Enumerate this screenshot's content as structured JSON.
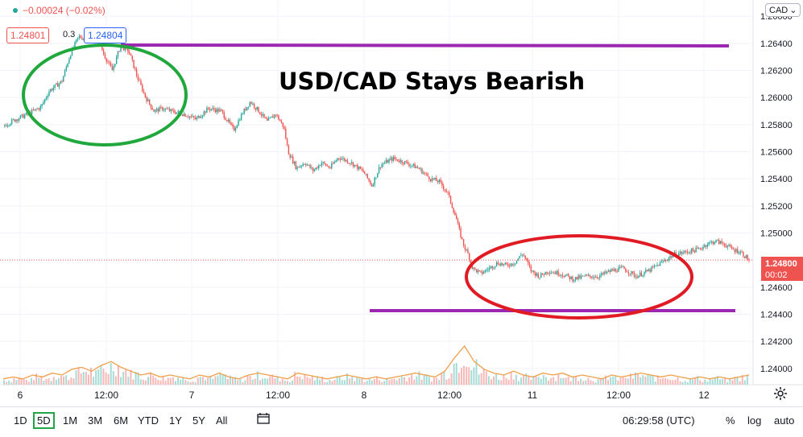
{
  "symbol_legend": {
    "change": "−0.00024 (−0.02%)"
  },
  "quote": {
    "bid": "1.24801",
    "spread": "0.3",
    "ask": "1.24804"
  },
  "currency_button": "CAD",
  "annotation_title": "USD/CAD Stays Bearish",
  "last_price": {
    "price": "1.24800",
    "countdown": "00:02"
  },
  "price_axis": [
    "1.26600",
    "1.26400",
    "1.26200",
    "1.26000",
    "1.25800",
    "1.25600",
    "1.25400",
    "1.25200",
    "1.25000",
    "1.24600",
    "1.24400",
    "1.24200",
    "1.24000"
  ],
  "time_axis": [
    "6",
    "12:00",
    "7",
    "12:00",
    "8",
    "12:00",
    "11",
    "12:00",
    "12"
  ],
  "timeframes": [
    "1D",
    "5D",
    "1M",
    "3M",
    "6M",
    "YTD",
    "1Y",
    "5Y",
    "All"
  ],
  "selected_timeframe": "5D",
  "clock": "06:29:58 (UTC)",
  "toolbar_right": {
    "percent": "%",
    "log": "log",
    "auto": "auto"
  },
  "colors": {
    "up": "#26a69a",
    "down": "#ef5350",
    "ma": "#f0a04b",
    "resistance_line": "#9c27b0",
    "top_circle": "#21a83c",
    "bottom_circle": "#e01b24"
  },
  "chart_data": {
    "type": "line",
    "ylim": [
      1.2388,
      1.2672
    ],
    "price_path": [
      [
        0,
        1.2579
      ],
      [
        3,
        1.2584
      ],
      [
        6,
        1.2588
      ],
      [
        9,
        1.2593
      ],
      [
        11,
        1.2605
      ],
      [
        14,
        1.2612
      ],
      [
        16,
        1.2632
      ],
      [
        18,
        1.2645
      ],
      [
        20,
        1.2643
      ],
      [
        22,
        1.2648
      ],
      [
        24,
        1.2632
      ],
      [
        26,
        1.262
      ],
      [
        28,
        1.2638
      ],
      [
        30,
        1.2634
      ],
      [
        32,
        1.2615
      ],
      [
        34,
        1.26
      ],
      [
        36,
        1.259
      ],
      [
        38,
        1.2592
      ],
      [
        40,
        1.259
      ],
      [
        43,
        1.2588
      ],
      [
        46,
        1.2584
      ],
      [
        49,
        1.2592
      ],
      [
        52,
        1.259
      ],
      [
        55,
        1.2576
      ],
      [
        57,
        1.2588
      ],
      [
        59,
        1.2597
      ],
      [
        61,
        1.259
      ],
      [
        63,
        1.2582
      ],
      [
        65,
        1.2588
      ],
      [
        67,
        1.2578
      ],
      [
        68,
        1.256
      ],
      [
        70,
        1.2548
      ],
      [
        72,
        1.2552
      ],
      [
        74,
        1.2546
      ],
      [
        76,
        1.2552
      ],
      [
        78,
        1.2548
      ],
      [
        80,
        1.2556
      ],
      [
        83,
        1.2552
      ],
      [
        86,
        1.2545
      ],
      [
        88,
        1.2535
      ],
      [
        90,
        1.255
      ],
      [
        93,
        1.2555
      ],
      [
        96,
        1.2552
      ],
      [
        99,
        1.2548
      ],
      [
        102,
        1.254
      ],
      [
        104,
        1.2538
      ],
      [
        106,
        1.253
      ],
      [
        108,
        1.2512
      ],
      [
        109,
        1.25
      ],
      [
        110,
        1.249
      ],
      [
        111,
        1.2484
      ],
      [
        112,
        1.2474
      ],
      [
        114,
        1.247
      ],
      [
        116,
        1.2474
      ],
      [
        118,
        1.2478
      ],
      [
        120,
        1.2476
      ],
      [
        122,
        1.2478
      ],
      [
        124,
        1.2485
      ],
      [
        126,
        1.2472
      ],
      [
        128,
        1.2468
      ],
      [
        130,
        1.2472
      ],
      [
        133,
        1.247
      ],
      [
        136,
        1.2466
      ],
      [
        139,
        1.2468
      ],
      [
        142,
        1.2468
      ],
      [
        145,
        1.2472
      ],
      [
        148,
        1.2474
      ],
      [
        151,
        1.2468
      ],
      [
        154,
        1.2472
      ],
      [
        157,
        1.2478
      ],
      [
        160,
        1.2484
      ],
      [
        163,
        1.2486
      ],
      [
        166,
        1.2488
      ],
      [
        168,
        1.2492
      ],
      [
        170,
        1.2494
      ],
      [
        172,
        1.2492
      ],
      [
        174,
        1.2488
      ],
      [
        176,
        1.2486
      ],
      [
        178,
        1.248
      ]
    ],
    "volume_profile": [
      3,
      4,
      3,
      5,
      4,
      6,
      5,
      8,
      9,
      7,
      10,
      12,
      9,
      7,
      5,
      6,
      4,
      5,
      4,
      3,
      5,
      4,
      6,
      4,
      3,
      5,
      6,
      5,
      4,
      3,
      6,
      5,
      4,
      3,
      4,
      5,
      4,
      3,
      4,
      3,
      4,
      5,
      6,
      5,
      4,
      7,
      14,
      20,
      12,
      8,
      6,
      5,
      7,
      5,
      4,
      6,
      5,
      6,
      4,
      5,
      4,
      3,
      5,
      4,
      5,
      6,
      5,
      4,
      5,
      4,
      3,
      4,
      3,
      4,
      3,
      4,
      5
    ]
  }
}
